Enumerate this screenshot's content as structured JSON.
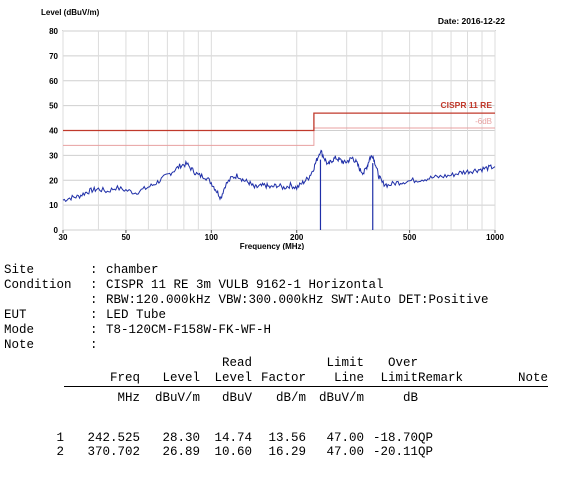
{
  "chart_data": {
    "type": "line",
    "ylabel": "Level (dBuV/m)",
    "xlabel": "Frequency (MHz)",
    "date": "Date: 2016-12-22",
    "x_scale": "log",
    "xlim": [
      30,
      1000
    ],
    "ylim": [
      0,
      80
    ],
    "y_ticks": [
      "0",
      "10",
      "20",
      "30",
      "40",
      "50",
      "60",
      "70",
      "80"
    ],
    "x_ticks": [
      {
        "value": 30,
        "label": "30"
      },
      {
        "value": 50,
        "label": "50"
      },
      {
        "value": 100,
        "label": "100"
      },
      {
        "value": 200,
        "label": "200"
      },
      {
        "value": 500,
        "label": "500"
      },
      {
        "value": 1000,
        "label": "1000"
      }
    ],
    "grid": true,
    "limit_line": {
      "name": "CISPR 11 RE",
      "color": "#c0392b",
      "points": [
        [
          30,
          40
        ],
        [
          230,
          40
        ],
        [
          230,
          47
        ],
        [
          1000,
          47
        ]
      ]
    },
    "margin_line": {
      "name": "-6dB",
      "color": "#e8a0a0",
      "points": [
        [
          30,
          34
        ],
        [
          230,
          34
        ],
        [
          230,
          41
        ],
        [
          1000,
          41
        ]
      ]
    },
    "series": [
      {
        "color": "#1f2fa8",
        "points": [
          [
            30,
            12
          ],
          [
            32,
            13
          ],
          [
            34,
            13.5
          ],
          [
            36,
            15
          ],
          [
            38,
            16
          ],
          [
            40,
            16.5
          ],
          [
            43,
            15.5
          ],
          [
            46,
            17
          ],
          [
            50,
            16
          ],
          [
            54,
            15
          ],
          [
            58,
            16.5
          ],
          [
            62,
            18
          ],
          [
            66,
            20
          ],
          [
            70,
            22
          ],
          [
            74,
            24
          ],
          [
            78,
            26
          ],
          [
            82,
            26.5
          ],
          [
            86,
            24
          ],
          [
            90,
            22
          ],
          [
            95,
            21.5
          ],
          [
            100,
            19
          ],
          [
            104,
            16
          ],
          [
            108,
            13
          ],
          [
            112,
            18
          ],
          [
            118,
            21
          ],
          [
            124,
            22
          ],
          [
            130,
            20
          ],
          [
            136,
            19
          ],
          [
            142,
            17
          ],
          [
            148,
            17.5
          ],
          [
            155,
            18
          ],
          [
            162,
            17
          ],
          [
            170,
            18
          ],
          [
            180,
            17
          ],
          [
            190,
            18
          ],
          [
            200,
            17
          ],
          [
            210,
            19
          ],
          [
            220,
            21
          ],
          [
            228,
            24
          ],
          [
            235,
            28
          ],
          [
            242.5,
            32
          ],
          [
            250,
            29
          ],
          [
            258,
            26
          ],
          [
            266,
            28
          ],
          [
            275,
            29
          ],
          [
            285,
            28
          ],
          [
            295,
            27
          ],
          [
            305,
            28
          ],
          [
            315,
            29
          ],
          [
            325,
            27
          ],
          [
            335,
            24
          ],
          [
            345,
            23
          ],
          [
            355,
            26
          ],
          [
            362,
            29
          ],
          [
            370.7,
            30
          ],
          [
            378,
            27
          ],
          [
            388,
            22
          ],
          [
            400,
            19
          ],
          [
            420,
            18
          ],
          [
            450,
            19
          ],
          [
            480,
            19.5
          ],
          [
            520,
            20
          ],
          [
            560,
            20.5
          ],
          [
            600,
            21
          ],
          [
            650,
            21.5
          ],
          [
            700,
            22
          ],
          [
            750,
            23
          ],
          [
            800,
            23.5
          ],
          [
            850,
            24
          ],
          [
            900,
            24.5
          ],
          [
            950,
            25
          ],
          [
            1000,
            25.5
          ]
        ]
      }
    ],
    "markers": [
      {
        "x": 242.525,
        "y": 28.3,
        "color": "#1f2fa8"
      },
      {
        "x": 370.702,
        "y": 26.89,
        "color": "#1f2fa8"
      }
    ]
  },
  "info": {
    "rows": [
      {
        "key": "Site",
        "value": "chamber"
      },
      {
        "key": "Condition",
        "value": "CISPR 11 RE 3m VULB 9162-1 Horizontal"
      },
      {
        "key": "",
        "value": "RBW:120.000kHz VBW:300.000kHz SWT:Auto DET:Positive"
      },
      {
        "key": "EUT",
        "value": "LED Tube"
      },
      {
        "key": "Mode",
        "value": "T8-120CM-F158W-FK-WF-H"
      },
      {
        "key": "Note",
        "value": ""
      }
    ]
  },
  "table": {
    "headers_top": [
      "",
      "",
      "",
      "Read",
      "",
      "Limit",
      "Over",
      "",
      ""
    ],
    "headers_bottom": [
      "",
      "Freq",
      "Level",
      "Level",
      "Factor",
      "Line",
      "Limit",
      "Remark",
      "Note"
    ],
    "units": [
      "",
      "MHz",
      "dBuV/m",
      "dBuV",
      "dB/m",
      "dBuV/m",
      "dB",
      "",
      ""
    ],
    "rows": [
      [
        "1",
        "242.525",
        "28.30",
        "14.74",
        "13.56",
        "47.00",
        "-18.70",
        "QP",
        ""
      ],
      [
        "2",
        "370.702",
        "26.89",
        "10.60",
        "16.29",
        "47.00",
        "-20.11",
        "QP",
        ""
      ]
    ]
  }
}
